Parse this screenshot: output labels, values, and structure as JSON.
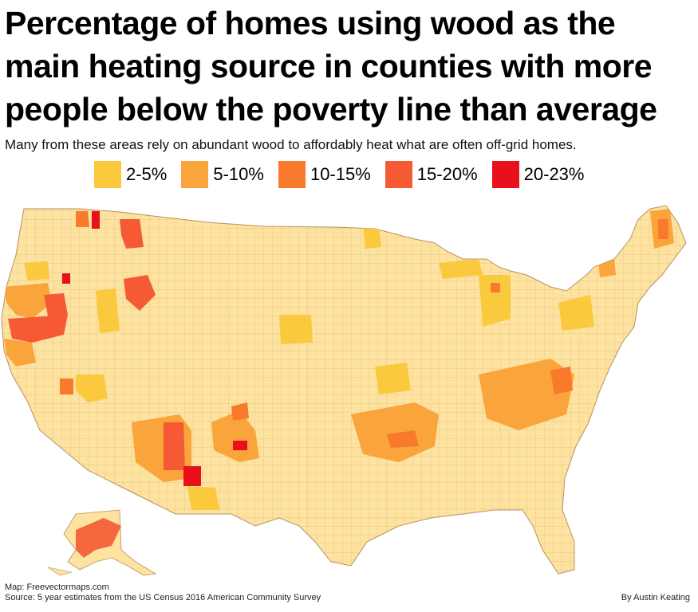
{
  "title": {
    "line1": "Percentage of homes using wood as the",
    "line2": "main heating source in counties with more",
    "line3": "people below the poverty line than average"
  },
  "subtitle": "Many from these areas rely on abundant wood to affordably heat what are often off-grid homes.",
  "legend": [
    {
      "label": "2-5%",
      "color": "#fbc93d"
    },
    {
      "label": "5-10%",
      "color": "#f9a53b"
    },
    {
      "label": "10-15%",
      "color": "#f87a2a"
    },
    {
      "label": "15-20%",
      "color": "#f55a35"
    },
    {
      "label": "20-23%",
      "color": "#e8101a"
    }
  ],
  "map": {
    "base_color": "#fde2a0",
    "county_line_color": "#d9b070",
    "state_line_color": "#b89060"
  },
  "credits": {
    "map_source": "Map: Freevectormaps.com",
    "data_source": "Source: 5 year estimates from the US Census 2016 American Community Survey",
    "author": "By Austin Keating"
  }
}
